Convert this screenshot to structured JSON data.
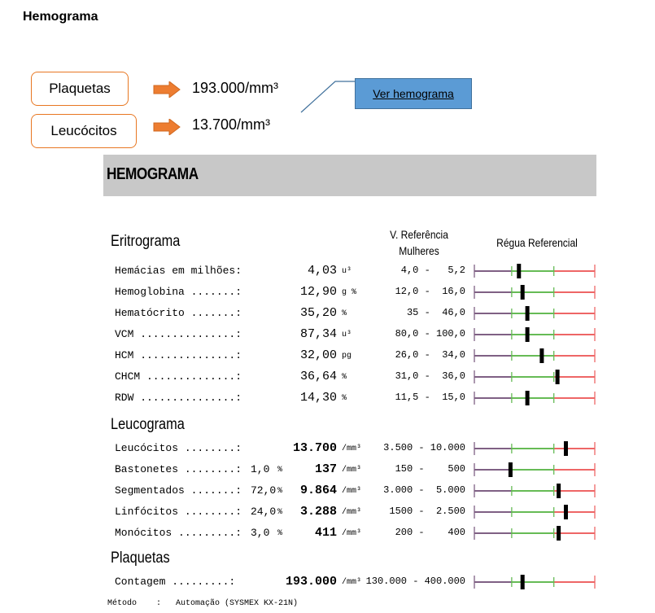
{
  "page_title": "Hemograma",
  "summary": {
    "items": [
      {
        "label": "Plaquetas",
        "value": "193.000/mm³"
      },
      {
        "label": "Leucócitos",
        "value": "13.700/mm³"
      }
    ],
    "button_label": "Ver hemograma"
  },
  "report": {
    "banner_title": "HEMOGRAMA",
    "ref_header": [
      "V. Referência",
      "Mulheres"
    ],
    "ruler_header": "Régua Referencial",
    "footer": "Método    :   Automação (SYSMEX KX-21N)",
    "sections": [
      {
        "title": "Eritrograma",
        "rows": [
          {
            "label": "Hemácias em milhões:",
            "pct": "",
            "value": "4,03",
            "unit": "u³",
            "ref": "4,0 -   5,2",
            "marker": 0.37,
            "bold": false
          },
          {
            "label": "Hemoglobina .......:",
            "pct": "",
            "value": "12,90",
            "unit": "g %",
            "ref": "12,0 -  16,0",
            "marker": 0.4,
            "bold": false
          },
          {
            "label": "Hematócrito .......:",
            "pct": "",
            "value": "35,20",
            "unit": "%",
            "ref": "35 -  46,0",
            "marker": 0.44,
            "bold": false
          },
          {
            "label": "VCM ...............:",
            "pct": "",
            "value": "87,34",
            "unit": "u³",
            "ref": "80,0 - 100,0",
            "marker": 0.44,
            "bold": false
          },
          {
            "label": "HCM ...............:",
            "pct": "",
            "value": "32,00",
            "unit": "pg",
            "ref": "26,0 -  34,0",
            "marker": 0.56,
            "bold": false
          },
          {
            "label": "CHCM ..............:",
            "pct": "",
            "value": "36,64",
            "unit": "%",
            "ref": "31,0 -  36,0",
            "marker": 0.69,
            "bold": false
          },
          {
            "label": "RDW ...............:",
            "pct": "",
            "value": "14,30",
            "unit": "%",
            "ref": "11,5 -  15,0",
            "marker": 0.44,
            "bold": false
          }
        ]
      },
      {
        "title": "Leucograma",
        "rows": [
          {
            "label": "Leucócitos ........:",
            "pct": "",
            "value": "13.700",
            "unit": "/mm³",
            "ref": "3.500 - 10.000",
            "marker": 0.76,
            "bold": true
          },
          {
            "label": "Bastonetes ........:",
            "pct": "1,0",
            "value": "137",
            "unit": "/mm³",
            "ref": "150 -    500",
            "marker": 0.3,
            "bold": true
          },
          {
            "label": "Segmentados .......:",
            "pct": "72,0",
            "value": "9.864",
            "unit": "/mm³",
            "ref": "3.000 -  5.000",
            "marker": 0.7,
            "bold": true
          },
          {
            "label": "Linfócitos ........:",
            "pct": "24,0",
            "value": "3.288",
            "unit": "/mm³",
            "ref": "1500 -  2.500",
            "marker": 0.76,
            "bold": true
          },
          {
            "label": "Monócitos .........:",
            "pct": "3,0",
            "value": "411",
            "unit": "/mm³",
            "ref": "200 -    400",
            "marker": 0.7,
            "bold": true
          }
        ]
      },
      {
        "title": "Plaquetas",
        "rows": [
          {
            "label": "Contagem .........:",
            "pct": "",
            "value": "193.000",
            "unit": "/mm³",
            "ref": "130.000 - 400.000",
            "marker": 0.4,
            "bold": true
          }
        ]
      }
    ]
  },
  "colors": {
    "accent_border": "#e87722",
    "arrow": "#ed7d31",
    "button": "#5b9bd5",
    "ruler_low": "#7f6084",
    "ruler_normal": "#66bb55",
    "ruler_high": "#ee6666",
    "banner": "#c8c8c8"
  }
}
